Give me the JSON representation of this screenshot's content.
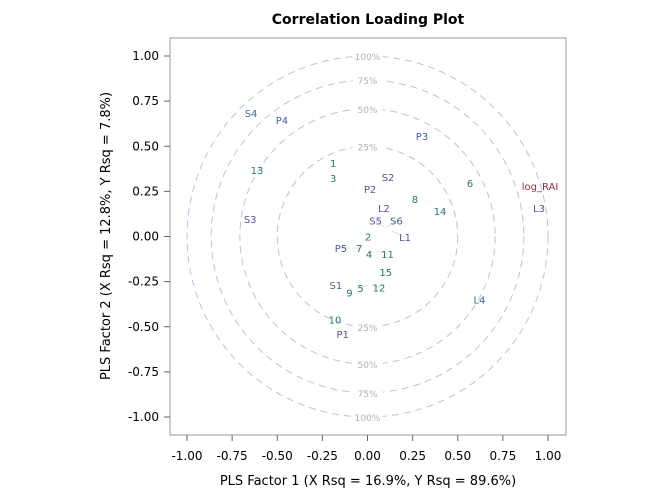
{
  "chart_data": {
    "type": "scatter",
    "title": "Correlation Loading Plot",
    "xlabel": "PLS Factor 1 (X Rsq = 16.9%, Y Rsq = 89.6%)",
    "ylabel": "PLS Factor 2 (X Rsq = 12.8%, Y Rsq = 7.8%)",
    "xlim": [
      -1.1,
      1.1
    ],
    "ylim": [
      -1.1,
      1.1
    ],
    "xticks": [
      "-1.00",
      "-0.75",
      "-0.50",
      "-0.25",
      "0.00",
      "0.25",
      "0.50",
      "0.75",
      "1.00"
    ],
    "yticks": [
      "1.00",
      "0.75",
      "0.50",
      "0.25",
      "0.00",
      "-0.25",
      "-0.50",
      "-0.75",
      "-1.00"
    ],
    "circles": [
      {
        "label": "25%",
        "radius": 0.5
      },
      {
        "label": "50%",
        "radius": 0.7071
      },
      {
        "label": "75%",
        "radius": 0.866
      },
      {
        "label": "100%",
        "radius": 1.0
      }
    ],
    "colors": {
      "x_variables": "#4a5a94",
      "observations": "#23786f",
      "y_variables": "#8b3535",
      "circle": "#b9c1e3",
      "circle_label": "#b0b0b0"
    },
    "points": [
      {
        "label": "S4",
        "x": -0.645,
        "y": 0.684,
        "group": "x_variables"
      },
      {
        "label": "P4",
        "x": -0.474,
        "y": 0.645,
        "group": "x_variables"
      },
      {
        "label": "P3",
        "x": 0.302,
        "y": 0.556,
        "group": "x_variables"
      },
      {
        "label": "1",
        "x": -0.19,
        "y": 0.407,
        "group": "observations"
      },
      {
        "label": "3",
        "x": -0.19,
        "y": 0.324,
        "group": "observations"
      },
      {
        "label": "13",
        "x": -0.612,
        "y": 0.368,
        "group": "observations"
      },
      {
        "label": "S2",
        "x": 0.114,
        "y": 0.33,
        "group": "x_variables"
      },
      {
        "label": "P2",
        "x": 0.014,
        "y": 0.263,
        "group": "x_variables"
      },
      {
        "label": "6",
        "x": 0.568,
        "y": 0.296,
        "group": "observations"
      },
      {
        "label": "log_RAI",
        "x": 0.956,
        "y": 0.28,
        "group": "y_variables"
      },
      {
        "label": "8",
        "x": 0.263,
        "y": 0.208,
        "group": "observations"
      },
      {
        "label": "L2",
        "x": 0.091,
        "y": 0.158,
        "group": "x_variables"
      },
      {
        "label": "14",
        "x": 0.402,
        "y": 0.141,
        "group": "observations"
      },
      {
        "label": "L3",
        "x": 0.95,
        "y": 0.158,
        "group": "x_variables"
      },
      {
        "label": "S3",
        "x": -0.65,
        "y": 0.097,
        "group": "x_variables"
      },
      {
        "label": "S5",
        "x": 0.095,
        "y": 0.05,
        "group": "x_variables"
      },
      {
        "label": "S6",
        "x": 0.105,
        "y": 0.05,
        "group": "x_variables"
      },
      {
        "label": "L1",
        "x": 0.136,
        "y": 0.03,
        "group": "x_variables"
      },
      {
        "label": "2",
        "x": 0.025,
        "y": 0.0,
        "group": "observations"
      },
      {
        "label": "P5",
        "x": -0.097,
        "y": -0.064,
        "group": "x_variables"
      },
      {
        "label": "7",
        "x": -0.085,
        "y": -0.064,
        "group": "observations"
      },
      {
        "label": "4",
        "x": 0.025,
        "y": -0.08,
        "group": "observations"
      },
      {
        "label": "11",
        "x": 0.05,
        "y": -0.08,
        "group": "observations"
      },
      {
        "label": "15",
        "x": 0.09,
        "y": -0.22,
        "group": "observations"
      },
      {
        "label": "5",
        "x": 0.0,
        "y": -0.27,
        "group": "observations"
      },
      {
        "label": "12",
        "x": 0.025,
        "y": -0.265,
        "group": "observations"
      },
      {
        "label": "S1",
        "x": -0.175,
        "y": -0.27,
        "group": "x_variables"
      },
      {
        "label": "9",
        "x": -0.1,
        "y": -0.31,
        "group": "observations"
      },
      {
        "label": "L4",
        "x": 0.62,
        "y": -0.35,
        "group": "x_variables"
      },
      {
        "label": "10",
        "x": -0.18,
        "y": -0.46,
        "group": "observations"
      },
      {
        "label": "P1",
        "x": -0.11,
        "y": -0.53,
        "group": "x_variables"
      }
    ]
  }
}
